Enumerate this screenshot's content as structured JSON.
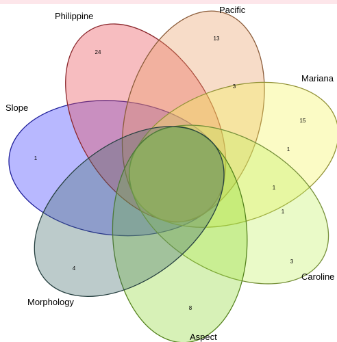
{
  "chart_data": {
    "type": "venn",
    "sets": [
      {
        "name": "Slope",
        "color": "#3333ff"
      },
      {
        "name": "Philippine",
        "color": "#e8414a"
      },
      {
        "name": "Pacific",
        "color": "#e89a60"
      },
      {
        "name": "Mariana",
        "color": "#f4f45a"
      },
      {
        "name": "Caroline",
        "color": "#c4f060"
      },
      {
        "name": "Aspect",
        "color": "#8cd830"
      },
      {
        "name": "Morphology",
        "color": "#3f6a6a"
      }
    ],
    "regions": {
      "values": [
        1,
        24,
        13,
        3,
        15,
        1,
        1,
        1,
        3,
        8,
        4
      ]
    }
  }
}
